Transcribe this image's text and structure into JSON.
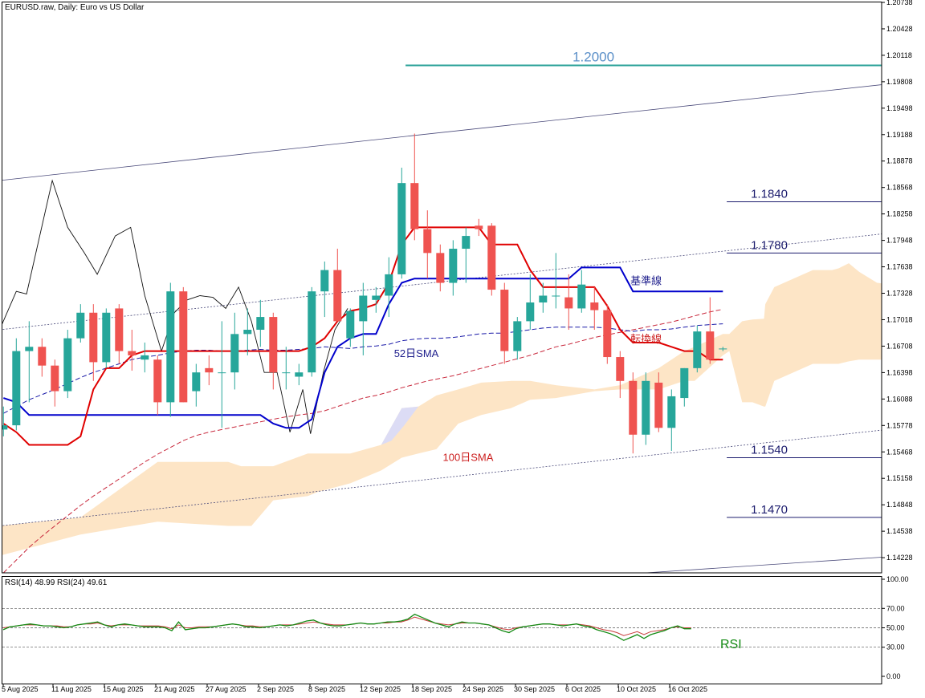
{
  "header": {
    "symbol_line": "EURUSD.raw, Daily:  Euro vs US Dollar",
    "rsi_line": "RSI(14) 48.99 RSI(24) 49.61"
  },
  "colors": {
    "bull": "#26a69a",
    "bear": "#ef5350",
    "tenkan": "#e00000",
    "kijun": "#0000cc",
    "sma52": "#1a1aa8",
    "sma100": "#c8283c",
    "cloud": "#fde5c6",
    "cloud_alt": "#dcdcf5",
    "level_navy": "#1c1c6e",
    "level_teal": "#2aa198",
    "rsi14": "#138a13",
    "rsi24": "#c83c3c"
  },
  "chart_data": {
    "type": "candlestick",
    "price_axis": {
      "ylim": [
        1.1405,
        1.20738
      ],
      "ticks": [
        "1.20738",
        "1.20428",
        "1.20118",
        "1.19808",
        "1.19498",
        "1.19188",
        "1.18878",
        "1.18568",
        "1.18258",
        "1.17948",
        "1.17638",
        "1.17328",
        "1.17018",
        "1.16708",
        "1.16398",
        "1.16088",
        "1.15778",
        "1.15468",
        "1.15158",
        "1.14848",
        "1.14538",
        "1.14228"
      ]
    },
    "x_axis_labels": [
      "5 Aug 2025",
      "11 Aug 2025",
      "15 Aug 2025",
      "21 Aug 2025",
      "27 Aug 2025",
      "2 Sep 2025",
      "8 Sep 2025",
      "12 Sep 2025",
      "18 Sep 2025",
      "24 Sep 2025",
      "30 Sep 2025",
      "6 Oct 2025",
      "10 Oct 2025",
      "16 Oct 2025"
    ],
    "candles": [
      {
        "o": 1.1573,
        "h": 1.16,
        "l": 1.1565,
        "c": 1.1578
      },
      {
        "o": 1.1578,
        "h": 1.168,
        "l": 1.1572,
        "c": 1.1665
      },
      {
        "o": 1.1665,
        "h": 1.17,
        "l": 1.1605,
        "c": 1.167
      },
      {
        "o": 1.167,
        "h": 1.168,
        "l": 1.1635,
        "c": 1.1648
      },
      {
        "o": 1.1648,
        "h": 1.1655,
        "l": 1.16,
        "c": 1.1618
      },
      {
        "o": 1.1618,
        "h": 1.169,
        "l": 1.161,
        "c": 1.168
      },
      {
        "o": 1.168,
        "h": 1.172,
        "l": 1.1675,
        "c": 1.171
      },
      {
        "o": 1.171,
        "h": 1.172,
        "l": 1.163,
        "c": 1.1652
      },
      {
        "o": 1.1652,
        "h": 1.1715,
        "l": 1.1645,
        "c": 1.171
      },
      {
        "o": 1.1715,
        "h": 1.172,
        "l": 1.165,
        "c": 1.1665
      },
      {
        "o": 1.1665,
        "h": 1.169,
        "l": 1.1642,
        "c": 1.166
      },
      {
        "o": 1.1655,
        "h": 1.1675,
        "l": 1.164,
        "c": 1.166
      },
      {
        "o": 1.1655,
        "h": 1.166,
        "l": 1.159,
        "c": 1.1605
      },
      {
        "o": 1.1605,
        "h": 1.1745,
        "l": 1.1588,
        "c": 1.1735
      },
      {
        "o": 1.1735,
        "h": 1.174,
        "l": 1.1605,
        "c": 1.1605
      },
      {
        "o": 1.1618,
        "h": 1.165,
        "l": 1.16,
        "c": 1.164
      },
      {
        "o": 1.1645,
        "h": 1.166,
        "l": 1.1625,
        "c": 1.164
      },
      {
        "o": 1.164,
        "h": 1.17,
        "l": 1.1575,
        "c": 1.164
      },
      {
        "o": 1.164,
        "h": 1.171,
        "l": 1.162,
        "c": 1.1685
      },
      {
        "o": 1.1685,
        "h": 1.1715,
        "l": 1.166,
        "c": 1.169
      },
      {
        "o": 1.169,
        "h": 1.1725,
        "l": 1.167,
        "c": 1.1705
      },
      {
        "o": 1.1705,
        "h": 1.171,
        "l": 1.162,
        "c": 1.164
      },
      {
        "o": 1.164,
        "h": 1.167,
        "l": 1.162,
        "c": 1.164
      },
      {
        "o": 1.1635,
        "h": 1.165,
        "l": 1.1625,
        "c": 1.164
      },
      {
        "o": 1.164,
        "h": 1.174,
        "l": 1.1635,
        "c": 1.1735
      },
      {
        "o": 1.1735,
        "h": 1.177,
        "l": 1.1705,
        "c": 1.176
      },
      {
        "o": 1.176,
        "h": 1.1785,
        "l": 1.17,
        "c": 1.17
      },
      {
        "o": 1.168,
        "h": 1.1715,
        "l": 1.167,
        "c": 1.1712
      },
      {
        "o": 1.17,
        "h": 1.1745,
        "l": 1.166,
        "c": 1.173
      },
      {
        "o": 1.1725,
        "h": 1.174,
        "l": 1.171,
        "c": 1.173
      },
      {
        "o": 1.173,
        "h": 1.1775,
        "l": 1.1705,
        "c": 1.1755
      },
      {
        "o": 1.1755,
        "h": 1.188,
        "l": 1.175,
        "c": 1.1862
      },
      {
        "o": 1.1862,
        "h": 1.192,
        "l": 1.1795,
        "c": 1.1808
      },
      {
        "o": 1.1808,
        "h": 1.183,
        "l": 1.175,
        "c": 1.178
      },
      {
        "o": 1.178,
        "h": 1.179,
        "l": 1.1735,
        "c": 1.1745
      },
      {
        "o": 1.1745,
        "h": 1.1795,
        "l": 1.173,
        "c": 1.1785
      },
      {
        "o": 1.1785,
        "h": 1.181,
        "l": 1.1745,
        "c": 1.18
      },
      {
        "o": 1.1812,
        "h": 1.182,
        "l": 1.18,
        "c": 1.1808
      },
      {
        "o": 1.1812,
        "h": 1.1815,
        "l": 1.173,
        "c": 1.1737
      },
      {
        "o": 1.1737,
        "h": 1.1745,
        "l": 1.165,
        "c": 1.1665
      },
      {
        "o": 1.1665,
        "h": 1.1705,
        "l": 1.1655,
        "c": 1.17
      },
      {
        "o": 1.17,
        "h": 1.1755,
        "l": 1.169,
        "c": 1.1722
      },
      {
        "o": 1.1722,
        "h": 1.1745,
        "l": 1.171,
        "c": 1.173
      },
      {
        "o": 1.173,
        "h": 1.178,
        "l": 1.1715,
        "c": 1.173
      },
      {
        "o": 1.1728,
        "h": 1.1755,
        "l": 1.169,
        "c": 1.1715
      },
      {
        "o": 1.1715,
        "h": 1.176,
        "l": 1.171,
        "c": 1.1743
      },
      {
        "o": 1.1722,
        "h": 1.174,
        "l": 1.169,
        "c": 1.1713
      },
      {
        "o": 1.1713,
        "h": 1.172,
        "l": 1.165,
        "c": 1.1658
      },
      {
        "o": 1.1658,
        "h": 1.1665,
        "l": 1.161,
        "c": 1.163
      },
      {
        "o": 1.163,
        "h": 1.164,
        "l": 1.1545,
        "c": 1.1567
      },
      {
        "o": 1.1567,
        "h": 1.164,
        "l": 1.1555,
        "c": 1.163
      },
      {
        "o": 1.1628,
        "h": 1.164,
        "l": 1.157,
        "c": 1.1575
      },
      {
        "o": 1.1575,
        "h": 1.162,
        "l": 1.1548,
        "c": 1.1612
      },
      {
        "o": 1.161,
        "h": 1.1645,
        "l": 1.16,
        "c": 1.1645
      },
      {
        "o": 1.1645,
        "h": 1.1695,
        "l": 1.164,
        "c": 1.1688
      },
      {
        "o": 1.1688,
        "h": 1.1728,
        "l": 1.165,
        "c": 1.1655
      },
      {
        "o": 1.1668,
        "h": 1.167,
        "l": 1.1665,
        "c": 1.1668
      }
    ],
    "kijun": [
      1.161,
      1.1605,
      1.159,
      1.159,
      1.159,
      1.159,
      1.159,
      1.159,
      1.159,
      1.159,
      1.159,
      1.159,
      1.159,
      1.159,
      1.159,
      1.159,
      1.159,
      1.159,
      1.159,
      1.159,
      1.159,
      1.158,
      1.1575,
      1.1575,
      1.1585,
      1.164,
      1.167,
      1.168,
      1.1685,
      1.1685,
      1.172,
      1.1745,
      1.175,
      1.175,
      1.175,
      1.175,
      1.175,
      1.175,
      1.175,
      1.175,
      1.175,
      1.175,
      1.175,
      1.175,
      1.175,
      1.1763,
      1.1763,
      1.1763,
      1.1763,
      1.1735,
      1.1735,
      1.1735,
      1.1735,
      1.1735,
      1.1735,
      1.1735,
      1.1735
    ],
    "tenkan": [
      1.158,
      1.157,
      1.1555,
      1.1555,
      1.1555,
      1.1555,
      1.1565,
      1.162,
      1.1645,
      1.1645,
      1.166,
      1.1665,
      1.1665,
      1.1665,
      1.1665,
      1.1665,
      1.1665,
      1.1665,
      1.1665,
      1.1665,
      1.1665,
      1.1665,
      1.1665,
      1.1665,
      1.167,
      1.168,
      1.17,
      1.1712,
      1.1715,
      1.172,
      1.1745,
      1.179,
      1.181,
      1.181,
      1.181,
      1.181,
      1.181,
      1.181,
      1.179,
      1.179,
      1.179,
      1.176,
      1.174,
      1.174,
      1.174,
      1.174,
      1.174,
      1.1718,
      1.169,
      1.1675,
      1.1675,
      1.1675,
      1.167,
      1.1665,
      1.1665,
      1.1655,
      1.1655
    ],
    "sma52": [
      1.1592,
      1.16,
      1.1608,
      1.1614,
      1.162,
      1.1627,
      1.1634,
      1.164,
      1.1645,
      1.165,
      1.1655,
      1.1658,
      1.166,
      1.1663,
      1.1665,
      1.1666,
      1.1666,
      1.1665,
      1.1665,
      1.1666,
      1.1667,
      1.1666,
      1.1666,
      1.1667,
      1.1668,
      1.167,
      1.1669,
      1.1668,
      1.167,
      1.1671,
      1.1673,
      1.1677,
      1.1679,
      1.168,
      1.168,
      1.1681,
      1.1683,
      1.1685,
      1.1686,
      1.1686,
      1.1688,
      1.169,
      1.1692,
      1.1693,
      1.1693,
      1.1693,
      1.1693,
      1.1692,
      1.169,
      1.1688,
      1.169,
      1.169,
      1.1691,
      1.1693,
      1.1695,
      1.1696,
      1.1697
    ],
    "sma100": [
      1.1405,
      1.142,
      1.1435,
      1.1448,
      1.146,
      1.1472,
      1.1484,
      1.1495,
      1.1505,
      1.1515,
      1.1525,
      1.1535,
      1.1544,
      1.1552,
      1.156,
      1.1566,
      1.157,
      1.1573,
      1.1576,
      1.1579,
      1.1582,
      1.1585,
      1.1588,
      1.159,
      1.1592,
      1.1595,
      1.16,
      1.1605,
      1.161,
      1.1613,
      1.1617,
      1.1622,
      1.1626,
      1.163,
      1.1633,
      1.1636,
      1.164,
      1.1644,
      1.1648,
      1.1652,
      1.1656,
      1.166,
      1.1665,
      1.167,
      1.1673,
      1.1677,
      1.1681,
      1.1684,
      1.1687,
      1.169,
      1.1693,
      1.1696,
      1.1699,
      1.1703,
      1.1707,
      1.1711,
      1.1714
    ],
    "cloud": {
      "x_index": [
        -0.3,
        6,
        12,
        17.5,
        18.5,
        19.3,
        21,
        23.7,
        24.5,
        27,
        29.4,
        31,
        32.3,
        33.7,
        35.4,
        37.2,
        39.5,
        41,
        43,
        46,
        48,
        51,
        53,
        53.8,
        56,
        56.5,
        57.5,
        58.3,
        59.2,
        59.3,
        60,
        63,
        64.5,
        65,
        65.8,
        66.6,
        68,
        69.7,
        70
      ],
      "a": [
        1.146,
        1.147,
        1.1535,
        1.1535,
        1.153,
        1.153,
        1.153,
        1.1545,
        1.1545,
        1.1545,
        1.1555,
        1.1598,
        1.16,
        1.1613,
        1.162,
        1.1628,
        1.163,
        1.163,
        1.1625,
        1.162,
        1.1625,
        1.1645,
        1.1665,
        1.167,
        1.1685,
        1.1685,
        1.17,
        1.1702,
        1.1703,
        1.172,
        1.174,
        1.176,
        1.176,
        1.1762,
        1.1768,
        1.1758,
        1.1745,
        1.1742,
        1.1742
      ],
      "b": [
        1.1425,
        1.145,
        1.1465,
        1.146,
        1.146,
        1.146,
        1.149,
        1.1495,
        1.15,
        1.151,
        1.1525,
        1.154,
        1.1545,
        1.155,
        1.158,
        1.159,
        1.1598,
        1.1608,
        1.161,
        1.1618,
        1.162,
        1.162,
        1.163,
        1.163,
        1.166,
        1.1665,
        1.1605,
        1.1605,
        1.16,
        1.16,
        1.163,
        1.165,
        1.165,
        1.165,
        1.1653,
        1.1655,
        1.1655,
        1.1655,
        1.1655
      ]
    },
    "trend_lines": [
      {
        "x": [
          -0.3,
          70
        ],
        "y": [
          1.1865,
          1.198
        ],
        "style": "solid"
      },
      {
        "x": [
          -0.3,
          70
        ],
        "y": [
          1.169,
          1.1805
        ],
        "style": "dotted"
      },
      {
        "x": [
          -0.3,
          70
        ],
        "y": [
          1.146,
          1.1575
        ],
        "style": "dotted"
      },
      {
        "x": [
          50,
          70
        ],
        "y": [
          1.1405,
          1.1425
        ],
        "style": "solid"
      }
    ],
    "horizontal_levels": [
      {
        "value": 1.2,
        "label": "1.2000",
        "color": "teal",
        "x_start": 31.3
      },
      {
        "value": 1.184,
        "label": "1.1840",
        "color": "navy",
        "x_start": 56.3
      },
      {
        "value": 1.178,
        "label": "1.1780",
        "color": "navy",
        "x_start": 56.3
      },
      {
        "value": 1.154,
        "label": "1.1540",
        "color": "navy",
        "x_start": 56.3
      },
      {
        "value": 1.147,
        "label": "1.1470",
        "color": "navy",
        "x_start": 56.3
      }
    ],
    "overlay_line": {
      "x_index": [
        -0.3,
        1.0,
        1.8,
        3.8,
        5.0,
        6.3,
        7.3,
        8.7,
        9.9,
        11.0,
        12.3,
        13.3,
        14.3,
        15.3,
        16.3,
        17.3,
        18.3,
        19.3,
        20.3,
        21.3,
        22.3,
        23.3,
        23.9,
        24.9,
        25.8,
        26.8
      ],
      "y": [
        1.169,
        1.1735,
        1.1732,
        1.1865,
        1.181,
        1.178,
        1.1755,
        1.18,
        1.181,
        1.173,
        1.1665,
        1.171,
        1.1725,
        1.173,
        1.1728,
        1.1715,
        1.174,
        1.17,
        1.164,
        1.164,
        1.157,
        1.162,
        1.1568,
        1.164,
        1.169,
        1.1715
      ]
    },
    "annotations": [
      {
        "text": "基準線",
        "x_index": 48.8,
        "y": 1.1743,
        "color": "navy"
      },
      {
        "text": "転換線",
        "x_index": 48.8,
        "y": 1.1675,
        "color": "red"
      },
      {
        "text": "52日SMA",
        "x_index": 30.4,
        "y": 1.1658,
        "color": "navy"
      },
      {
        "text": "100日SMA",
        "x_index": 34.2,
        "y": 1.1536,
        "color": "red"
      }
    ],
    "rsi": {
      "ylim": [
        0,
        100
      ],
      "ticks": [
        "100.00",
        "70.00",
        "50.00",
        "30.00",
        "0.00"
      ],
      "levels": [
        70,
        50,
        30
      ],
      "label": "RSI",
      "rsi14": [
        48,
        51,
        52,
        53,
        54,
        53,
        52,
        52,
        51,
        50,
        51,
        53,
        54,
        55,
        56,
        53,
        51,
        53,
        54,
        53,
        52,
        51,
        51,
        51,
        50,
        47,
        56,
        48,
        49,
        50,
        50,
        51,
        52,
        53,
        54,
        53,
        51,
        51,
        50,
        51,
        52,
        53,
        52,
        53,
        55,
        57,
        58,
        55,
        53,
        52,
        52,
        53,
        54,
        55,
        54,
        54,
        55,
        56,
        56,
        57,
        59,
        64,
        61,
        58,
        55,
        53,
        51,
        54,
        56,
        55,
        55,
        54,
        53,
        50,
        47,
        45,
        49,
        51,
        52,
        53,
        54,
        54,
        53,
        52,
        53,
        54,
        52,
        51,
        48,
        46,
        44,
        41,
        37,
        40,
        43,
        39,
        43,
        45,
        47,
        50,
        52,
        49,
        49
      ],
      "rsi24": [
        50,
        51,
        52,
        53,
        53,
        53,
        52,
        52,
        52,
        51,
        51,
        53,
        54,
        54,
        55,
        53,
        52,
        53,
        53,
        53,
        52,
        52,
        52,
        52,
        51,
        49,
        53,
        50,
        50,
        51,
        51,
        51,
        52,
        53,
        54,
        53,
        52,
        52,
        51,
        51,
        52,
        53,
        53,
        53,
        54,
        55,
        56,
        55,
        54,
        53,
        53,
        53,
        54,
        55,
        54,
        54,
        55,
        55,
        56,
        56,
        58,
        61,
        59,
        57,
        55,
        54,
        53,
        54,
        55,
        55,
        55,
        54,
        53,
        51,
        49,
        48,
        50,
        51,
        52,
        53,
        54,
        54,
        53,
        53,
        53,
        54,
        53,
        52,
        50,
        48,
        47,
        45,
        42,
        44,
        46,
        43,
        46,
        47,
        48,
        50,
        51,
        50,
        50
      ]
    }
  }
}
